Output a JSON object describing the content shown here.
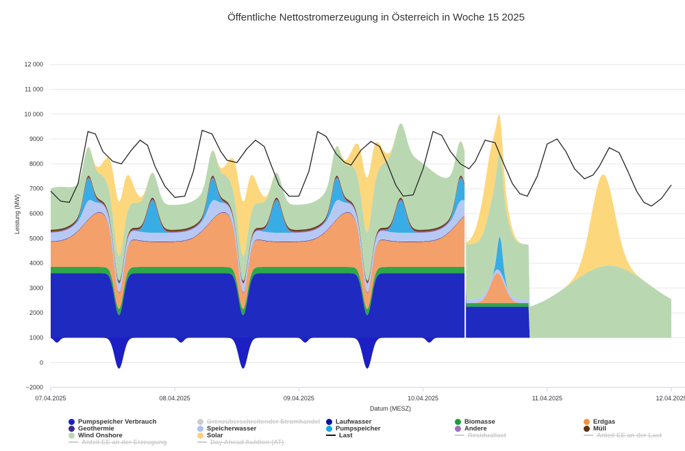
{
  "chart_data": {
    "type": "area",
    "title": "Öffentliche Nettostromerzeugung in Österreich in Woche 15 2025",
    "xlabel": "Datum (MESZ)",
    "ylabel": "Leistung (MW)",
    "ylim": [
      -2000,
      12000
    ],
    "yticks": [
      "−2000",
      "0",
      "1000",
      "2000",
      "3000",
      "4000",
      "5000",
      "6000",
      "7000",
      "8000",
      "9000",
      "10 000",
      "11 000",
      "12 000"
    ],
    "xticks": [
      "07.04.2025",
      "08.04.2025",
      "09.04.2025",
      "10.04.2025",
      "11.04.2025",
      "12.04.2025"
    ],
    "x_days": [
      0,
      1,
      2,
      3,
      4,
      5
    ],
    "grid": "horizontal",
    "legend_position": "bottom",
    "series": [
      {
        "name": "Pumpspeicher Verbrauch",
        "color": "#1b1fc4",
        "role": "negative-area"
      },
      {
        "name": "Grenzüberschreitender Stromhandel",
        "color": "#cccccc",
        "hidden": true
      },
      {
        "name": "Laufwasser",
        "color": "#1f2ac0",
        "role": "stack"
      },
      {
        "name": "Biomasse",
        "color": "#2ea64a",
        "role": "stack"
      },
      {
        "name": "Erdgas",
        "color": "#f4a06a",
        "role": "stack"
      },
      {
        "name": "Geothermie",
        "color": "#3c2a8c",
        "role": "stack"
      },
      {
        "name": "Speicherwasser",
        "color": "#b6c9f5",
        "role": "stack"
      },
      {
        "name": "Pumpspeicher",
        "color": "#38ace4",
        "role": "stack"
      },
      {
        "name": "Andere",
        "color": "#9c72ba",
        "role": "stack"
      },
      {
        "name": "Müll",
        "color": "#6b4423",
        "role": "stack"
      },
      {
        "name": "Wind Onshore",
        "color": "#b9d8b2",
        "role": "stack"
      },
      {
        "name": "Solar",
        "color": "#fdd77c",
        "role": "stack"
      },
      {
        "name": "Last",
        "color": "#222222",
        "role": "line"
      },
      {
        "name": "Residuallast",
        "color": "#cccccc",
        "hidden": true
      },
      {
        "name": "Anteil EE an der Last",
        "color": "#cccccc",
        "hidden": true
      },
      {
        "name": "Anteil EE an der Erzeugung",
        "color": "#cccccc",
        "hidden": true
      },
      {
        "name": "Day Ahead Auktion (AT)",
        "color": "#cccccc",
        "hidden": true
      }
    ],
    "profiles": {
      "last_x": [
        0.0,
        0.08,
        0.15,
        0.22,
        0.3,
        0.36,
        0.42,
        0.5,
        0.57,
        0.65,
        0.72,
        0.78,
        0.84,
        0.92,
        1.0,
        1.08,
        1.15,
        1.22,
        1.3,
        1.37,
        1.42,
        1.5,
        1.58,
        1.65,
        1.72,
        1.78,
        1.84,
        1.92,
        2.0,
        2.08,
        2.15,
        2.22,
        2.3,
        2.37,
        2.42,
        2.5,
        2.58,
        2.65,
        2.72,
        2.78,
        2.84,
        2.92,
        3.0,
        3.08,
        3.15,
        3.22,
        3.3,
        3.37,
        3.42,
        3.5,
        3.58,
        3.65,
        3.72,
        3.78,
        3.84,
        3.92,
        4.0,
        4.08,
        4.15,
        4.22,
        4.3,
        4.37,
        4.42,
        4.5,
        4.58,
        4.65,
        4.72,
        4.78,
        4.84,
        4.92,
        5.0
      ],
      "last_y": [
        5900,
        5500,
        5450,
        6200,
        8300,
        8200,
        7500,
        7100,
        7000,
        7550,
        7950,
        7750,
        6900,
        6100,
        5650,
        5700,
        6700,
        8350,
        8200,
        7500,
        7150,
        7050,
        7600,
        7950,
        7700,
        6900,
        6150,
        5700,
        5700,
        6700,
        8300,
        8100,
        7400,
        7050,
        6950,
        7550,
        7900,
        7700,
        6900,
        6150,
        5700,
        5750,
        6800,
        8300,
        8150,
        7500,
        7000,
        6800,
        7100,
        7950,
        7850,
        7000,
        6200,
        5800,
        5700,
        6500,
        7800,
        8000,
        7500,
        6800,
        6400,
        6550,
        6900,
        7650,
        7450,
        6700,
        5900,
        5450,
        5300,
        5600,
        6150
      ]
    }
  },
  "legend": [
    {
      "label": "Pumpspeicher Verbrauch",
      "color": "#1b1fc4",
      "kind": "dot",
      "active": true
    },
    {
      "label": "Grenzüberschreitender Stromhandel",
      "color": "#cccccc",
      "kind": "dot",
      "active": false
    },
    {
      "label": "Laufwasser",
      "color": "#0b0ea0",
      "kind": "dot",
      "active": true
    },
    {
      "label": "Biomasse",
      "color": "#1c9a3c",
      "kind": "dot",
      "active": true
    },
    {
      "label": "Erdgas",
      "color": "#f39042",
      "kind": "dot",
      "active": true
    },
    {
      "label": "Geothermie",
      "color": "#3c2a8c",
      "kind": "dot",
      "active": true
    },
    {
      "label": "Speicherwasser",
      "color": "#a9c2f5",
      "kind": "dot",
      "active": true
    },
    {
      "label": "Pumpspeicher",
      "color": "#1ba6e2",
      "kind": "dot",
      "active": true
    },
    {
      "label": "Andere",
      "color": "#9c72ba",
      "kind": "dot",
      "active": true
    },
    {
      "label": "Müll",
      "color": "#5a3310",
      "kind": "dot",
      "active": true
    },
    {
      "label": "Wind Onshore",
      "color": "#b9d8b2",
      "kind": "dot",
      "active": true
    },
    {
      "label": "Solar",
      "color": "#fdd07a",
      "kind": "dot",
      "active": true
    },
    {
      "label": "Last",
      "color": "#111111",
      "kind": "line",
      "active": true
    },
    {
      "label": "Residuallast",
      "color": "#cccccc",
      "kind": "line",
      "active": false
    },
    {
      "label": "Anteil EE an der Last",
      "color": "#cccccc",
      "kind": "line",
      "active": false
    },
    {
      "label": "Anteil EE an der Erzeugung",
      "color": "#cccccc",
      "kind": "line",
      "active": false
    },
    {
      "label": "Day Ahead Auktion (AT)",
      "color": "#cccccc",
      "kind": "line",
      "active": false
    }
  ]
}
